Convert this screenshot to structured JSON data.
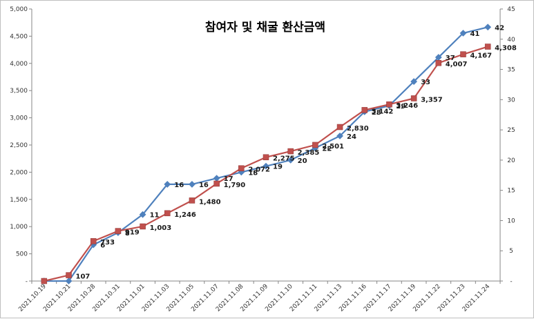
{
  "chart_data": {
    "type": "line",
    "title": "참여자 및 채굴 환산금액",
    "categories": [
      "2021.10.19",
      "2021.10.21",
      "2021.10.28",
      "2021.10.31",
      "2021.11.01",
      "2021.11.03",
      "2021.11.05",
      "2021.11.07",
      "2021.11.08",
      "2021.11.09",
      "2021.11.10",
      "2021.11.11",
      "2021.11.13",
      "2021.11.16",
      "2021.11.17",
      "2021.11.19",
      "2021.11.22",
      "2021.11.23",
      "2021.11.24"
    ],
    "left_axis": {
      "min": 0,
      "max": 5000,
      "step": 500,
      "tick_labels": [
        "-",
        "500",
        "1,000",
        "1,500",
        "2,000",
        "2,500",
        "3,000",
        "3,500",
        "4,000",
        "4,500",
        "5,000"
      ]
    },
    "right_axis": {
      "min": 0,
      "max": 45,
      "step": 5,
      "tick_labels": [
        "-",
        "5",
        "10",
        "15",
        "20",
        "25",
        "30",
        "35",
        "40",
        "45"
      ]
    },
    "series": [
      {
        "axis": "right",
        "color": "#4f81bd",
        "marker": "diamond",
        "values": [
          0,
          0,
          6,
          8,
          11,
          16,
          16,
          17,
          18,
          19,
          20,
          22,
          24,
          28,
          29,
          33,
          37,
          41,
          42
        ],
        "labels": [
          "",
          "",
          "6",
          "8",
          "11",
          "16",
          "16",
          "17",
          "18",
          "19",
          "20",
          "22",
          "24",
          "28",
          "29",
          "33",
          "37",
          "41",
          "42"
        ]
      },
      {
        "axis": "left",
        "color": "#c0504d",
        "marker": "square",
        "values": [
          0,
          107,
          733,
          919,
          1003,
          1246,
          1480,
          1790,
          2072,
          2275,
          2385,
          2501,
          2830,
          3142,
          3246,
          3357,
          4007,
          4167,
          4308
        ],
        "labels": [
          "",
          "107",
          "733",
          "919",
          "1,003",
          "1,246",
          "1,480",
          "1,790",
          "2,072",
          "2,275",
          "2,385",
          "2,501",
          "2,830",
          "3,142",
          "3,246",
          "3,357",
          "4,007",
          "4,167",
          "4,308"
        ]
      }
    ],
    "grid": false,
    "legend": "none"
  }
}
